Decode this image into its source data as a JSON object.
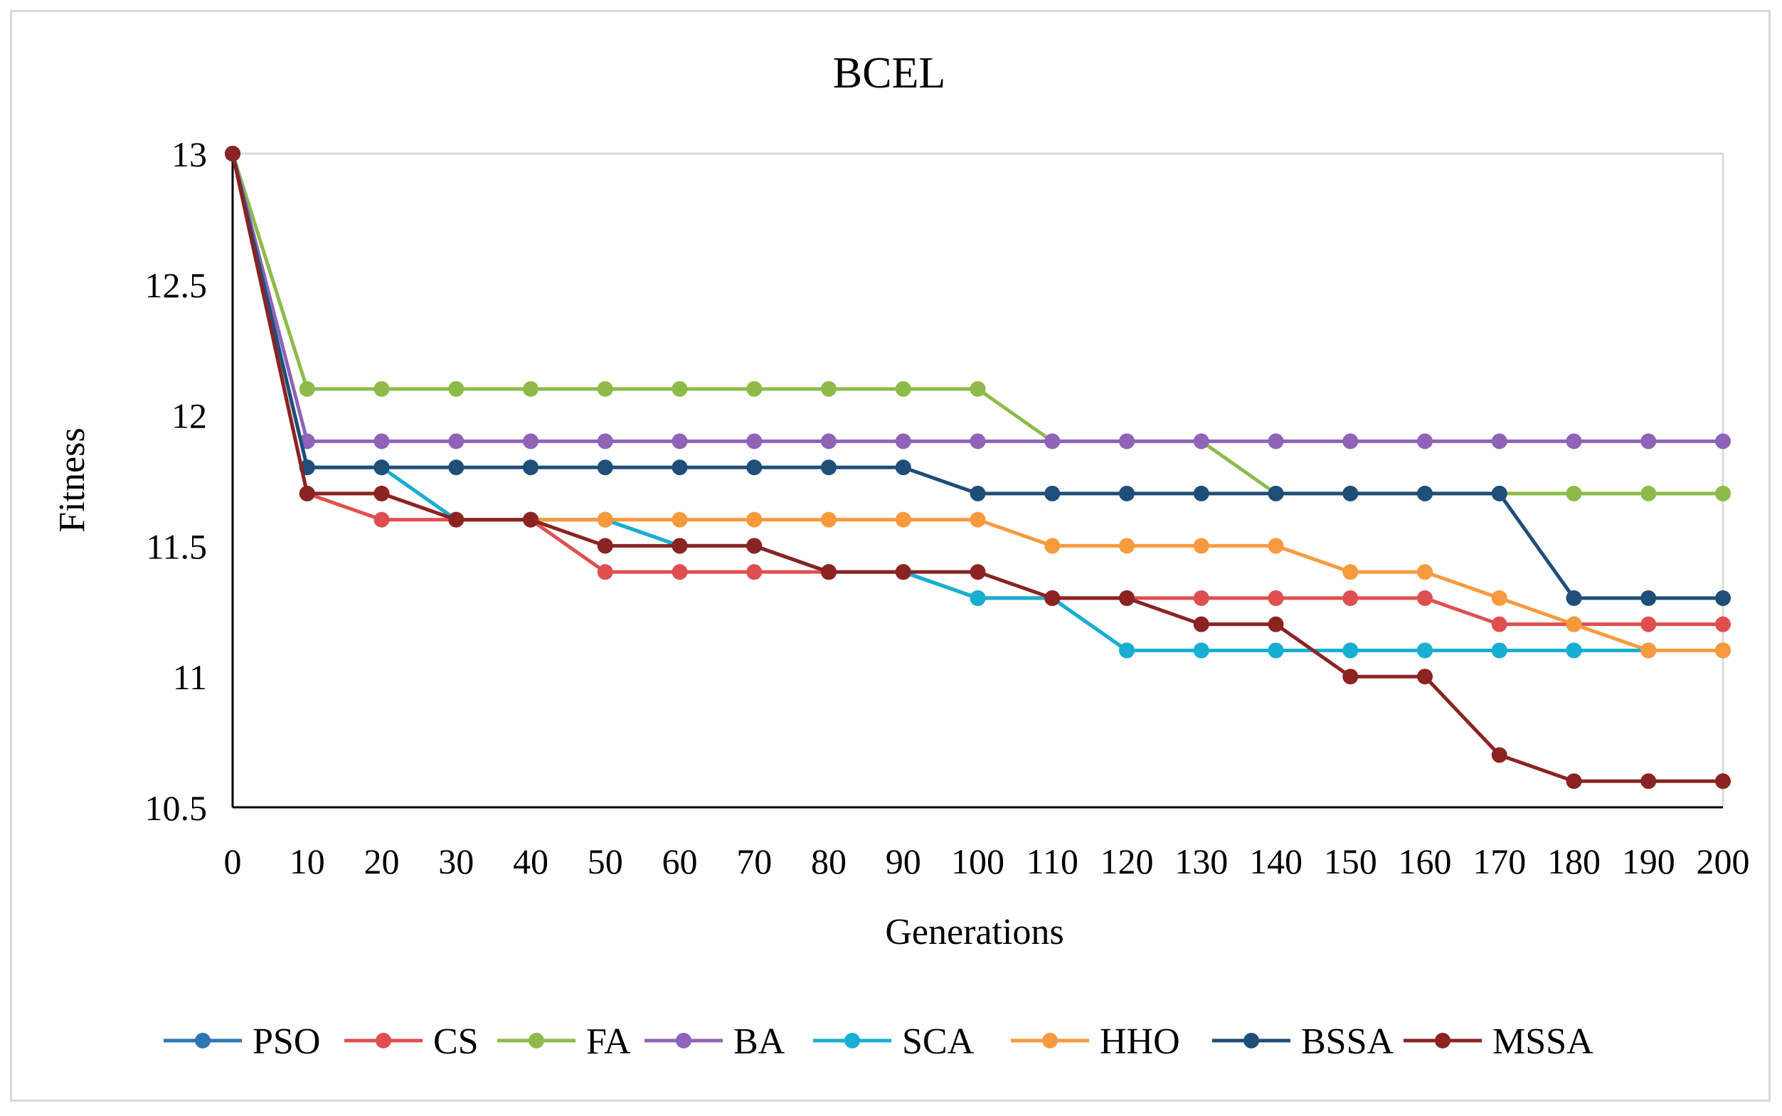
{
  "chart_data": {
    "type": "line",
    "title": "BCEL",
    "xlabel": "Generations",
    "ylabel": "Fitness",
    "ylim": [
      10.5,
      13
    ],
    "yticks": [
      10.5,
      11,
      11.5,
      12,
      12.5,
      13
    ],
    "ytick_labels": [
      "10.5",
      "11",
      "11.5",
      "12",
      "12.5",
      "13"
    ],
    "x": [
      0,
      10,
      20,
      30,
      40,
      50,
      60,
      70,
      80,
      90,
      100,
      110,
      120,
      130,
      140,
      150,
      160,
      170,
      180,
      190,
      200
    ],
    "x_labels": [
      "0",
      "10",
      "20",
      "30",
      "40",
      "50",
      "60",
      "70",
      "80",
      "90",
      "100",
      "110",
      "120",
      "130",
      "140",
      "150",
      "160",
      "170",
      "180",
      "190",
      "200"
    ],
    "grid": false,
    "legend_position": "bottom",
    "series": [
      {
        "name": "PSO",
        "color": "#2e75b6",
        "values": [
          13,
          11.8,
          11.8,
          11.6,
          11.6,
          11.6,
          11.5,
          11.5,
          11.4,
          11.4,
          11.3,
          11.3,
          11.1,
          11.1,
          11.1,
          11.1,
          11.1,
          11.1,
          11.1,
          11.1,
          11.1
        ]
      },
      {
        "name": "CS",
        "color": "#e04f50",
        "values": [
          13,
          11.7,
          11.6,
          11.6,
          11.6,
          11.4,
          11.4,
          11.4,
          11.4,
          11.4,
          11.3,
          11.3,
          11.3,
          11.3,
          11.3,
          11.3,
          11.3,
          11.2,
          11.2,
          11.2,
          11.2
        ]
      },
      {
        "name": "FA",
        "color": "#8dbb4a",
        "values": [
          13,
          12.1,
          12.1,
          12.1,
          12.1,
          12.1,
          12.1,
          12.1,
          12.1,
          12.1,
          12.1,
          11.9,
          11.9,
          11.9,
          11.7,
          11.7,
          11.7,
          11.7,
          11.7,
          11.7,
          11.7
        ]
      },
      {
        "name": "BA",
        "color": "#8f63b8",
        "values": [
          13,
          11.9,
          11.9,
          11.9,
          11.9,
          11.9,
          11.9,
          11.9,
          11.9,
          11.9,
          11.9,
          11.9,
          11.9,
          11.9,
          11.9,
          11.9,
          11.9,
          11.9,
          11.9,
          11.9,
          11.9
        ]
      },
      {
        "name": "SCA",
        "color": "#17afd1",
        "values": [
          13,
          11.8,
          11.8,
          11.6,
          11.6,
          11.6,
          11.5,
          11.5,
          11.4,
          11.4,
          11.3,
          11.3,
          11.1,
          11.1,
          11.1,
          11.1,
          11.1,
          11.1,
          11.1,
          11.1,
          11.1
        ]
      },
      {
        "name": "HHO",
        "color": "#f79a3e",
        "values": [
          13,
          11.7,
          11.7,
          11.6,
          11.6,
          11.6,
          11.6,
          11.6,
          11.6,
          11.6,
          11.6,
          11.5,
          11.5,
          11.5,
          11.5,
          11.4,
          11.4,
          11.3,
          11.2,
          11.1,
          11.1
        ]
      },
      {
        "name": "BSSA",
        "color": "#1f4e79",
        "values": [
          13,
          11.8,
          11.8,
          11.8,
          11.8,
          11.8,
          11.8,
          11.8,
          11.8,
          11.8,
          11.7,
          11.7,
          11.7,
          11.7,
          11.7,
          11.7,
          11.7,
          11.7,
          11.3,
          11.3,
          11.3
        ]
      },
      {
        "name": "MSSA",
        "color": "#8b2323",
        "values": [
          13,
          11.7,
          11.7,
          11.6,
          11.6,
          11.5,
          11.5,
          11.5,
          11.4,
          11.4,
          11.4,
          11.3,
          11.3,
          11.2,
          11.2,
          11.0,
          11.0,
          10.7,
          10.6,
          10.6,
          10.6
        ]
      }
    ]
  }
}
